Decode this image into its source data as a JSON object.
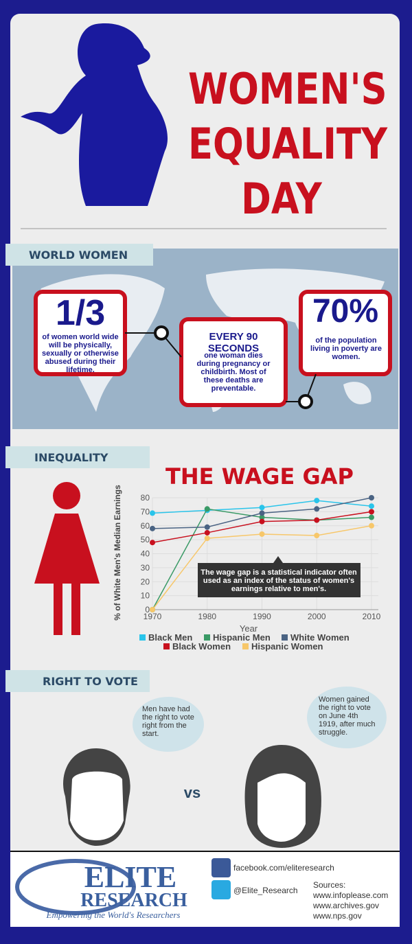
{
  "header": {
    "title_lines": [
      "WOMEN'S",
      "EQUALITY",
      "DAY"
    ]
  },
  "world": {
    "heading": "WORLD WOMEN",
    "stats": [
      {
        "big": "1/3",
        "text": "of women world wide will be physically, sexually or otherwise abused during their lifetime."
      },
      {
        "big": "EVERY 90 SECONDS",
        "text": "one woman dies during pregnancy or childbirth. Most of these deaths are preventable."
      },
      {
        "big": "70%",
        "text": "of the population living in poverty are women."
      }
    ]
  },
  "inequality": {
    "heading": "INEQUALITY"
  },
  "chart_data": {
    "type": "line",
    "title": "THE WAGE GAP",
    "x_label": "Year",
    "y_label": "% of White Men's Median Earnings",
    "x": [
      1970,
      1980,
      1990,
      2000,
      2010
    ],
    "series": [
      {
        "name": "Black Men",
        "color": "#29c4ea",
        "values": [
          69,
          71,
          73,
          78,
          74
        ]
      },
      {
        "name": "Hispanic Men",
        "color": "#3a9a66",
        "values": [
          0,
          72,
          66,
          64,
          66
        ]
      },
      {
        "name": "White Women",
        "color": "#4a6383",
        "values": [
          58,
          59,
          69,
          72,
          80
        ]
      },
      {
        "name": "Black Women",
        "color": "#c8101e",
        "values": [
          48,
          55,
          63,
          64,
          70
        ]
      },
      {
        "name": "Hispanic Women",
        "color": "#f7c76a",
        "values": [
          0,
          51,
          54,
          53,
          60
        ]
      }
    ],
    "xlim": [
      1970,
      2010
    ],
    "xticks": [
      1970,
      1980,
      1990,
      2000,
      2010
    ],
    "ylim": [
      0,
      80
    ],
    "yticks": [
      0,
      10,
      20,
      30,
      40,
      50,
      60,
      70,
      80
    ],
    "grid": true,
    "annotation": "The wage gap is a statistical indicator often used as an index of the status of women's earnings relative to men's."
  },
  "vote": {
    "heading": "RIGHT TO VOTE",
    "men": "Men have had the right to vote right from the start.",
    "vs": "vs",
    "women": "Women gained the right to vote on June 4th 1919, after much struggle."
  },
  "footer": {
    "logo_top": "ELITE",
    "logo_bottom": "RESEARCH",
    "tagline": "Empowering the World's Researchers",
    "facebook": "facebook.com/eliteresearch",
    "twitter": "@Elite_Research",
    "sources": [
      "Sources:",
      "www.infoplease.com",
      "www.archives.gov",
      "www.nps.gov"
    ]
  }
}
